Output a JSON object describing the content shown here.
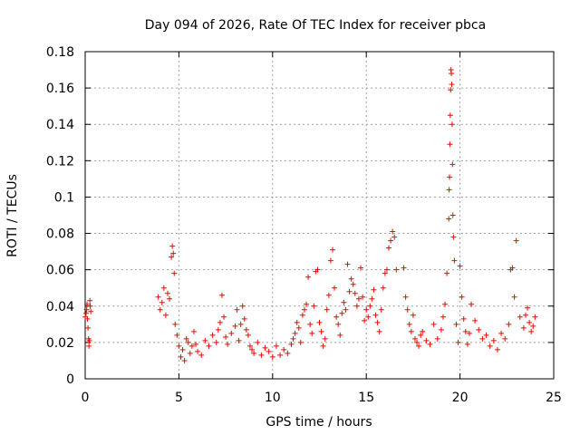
{
  "chart_data": {
    "type": "scatter",
    "title": "Day 094 of 2026, Rate Of TEC Index for receiver pbca",
    "xlabel": "GPS time / hours",
    "ylabel": "ROTI / TECUs",
    "xlim": [
      0,
      25
    ],
    "ylim": [
      0,
      0.18
    ],
    "xticks": [
      "0",
      "5",
      "10",
      "15",
      "20",
      "25"
    ],
    "yticks": [
      "0",
      "0.02",
      "0.04",
      "0.06",
      "0.08",
      "0.1",
      "0.12",
      "0.14",
      "0.16",
      "0.18"
    ],
    "grid": true,
    "marker": "+",
    "color": "#ff0000",
    "series": [
      {
        "name": "ROTI",
        "x": [
          0.0,
          0.05,
          0.08,
          0.1,
          0.12,
          0.15,
          0.18,
          0.2,
          0.22,
          0.25,
          0.27,
          0.3,
          3.9,
          4.0,
          4.1,
          4.2,
          4.3,
          4.4,
          4.5,
          4.6,
          4.65,
          4.7,
          4.75,
          4.8,
          4.9,
          5.0,
          5.1,
          5.2,
          5.3,
          5.4,
          5.5,
          5.6,
          5.7,
          5.8,
          5.9,
          6.0,
          6.2,
          6.4,
          6.6,
          6.8,
          7.0,
          7.1,
          7.2,
          7.3,
          7.4,
          7.5,
          7.6,
          7.8,
          8.0,
          8.1,
          8.2,
          8.3,
          8.4,
          8.5,
          8.6,
          8.7,
          8.8,
          8.9,
          9.0,
          9.2,
          9.4,
          9.6,
          9.8,
          10.0,
          10.2,
          10.4,
          10.6,
          10.8,
          11.0,
          11.1,
          11.2,
          11.3,
          11.4,
          11.5,
          11.6,
          11.7,
          11.8,
          11.9,
          12.0,
          12.1,
          12.2,
          12.3,
          12.4,
          12.5,
          12.6,
          12.7,
          12.8,
          12.9,
          13.0,
          13.1,
          13.2,
          13.3,
          13.4,
          13.5,
          13.6,
          13.7,
          13.8,
          13.9,
          14.0,
          14.1,
          14.2,
          14.3,
          14.4,
          14.5,
          14.6,
          14.7,
          14.8,
          14.9,
          15.0,
          15.1,
          15.2,
          15.3,
          15.4,
          15.5,
          15.6,
          15.7,
          15.8,
          15.9,
          16.0,
          16.1,
          16.2,
          16.3,
          16.4,
          16.5,
          16.6,
          17.0,
          17.1,
          17.2,
          17.3,
          17.4,
          17.5,
          17.6,
          17.7,
          17.8,
          17.9,
          18.0,
          18.2,
          18.4,
          18.6,
          18.8,
          19.0,
          19.1,
          19.2,
          19.3,
          19.4,
          19.42,
          19.44,
          19.46,
          19.48,
          19.5,
          19.52,
          19.54,
          19.56,
          19.58,
          19.6,
          19.62,
          19.65,
          19.7,
          19.8,
          19.9,
          20.0,
          20.1,
          20.2,
          20.3,
          20.4,
          20.5,
          20.6,
          20.8,
          21.0,
          21.2,
          21.4,
          21.6,
          21.8,
          22.0,
          22.2,
          22.4,
          22.6,
          22.7,
          22.8,
          22.9,
          23.0,
          23.2,
          23.4,
          23.5,
          23.6,
          23.7,
          23.8,
          23.9,
          24.0
        ],
        "y": [
          0.034,
          0.036,
          0.038,
          0.041,
          0.033,
          0.028,
          0.022,
          0.018,
          0.021,
          0.043,
          0.04,
          0.037,
          0.045,
          0.038,
          0.042,
          0.05,
          0.035,
          0.047,
          0.044,
          0.067,
          0.073,
          0.069,
          0.058,
          0.03,
          0.024,
          0.018,
          0.012,
          0.016,
          0.01,
          0.022,
          0.02,
          0.014,
          0.018,
          0.026,
          0.019,
          0.015,
          0.013,
          0.021,
          0.018,
          0.024,
          0.02,
          0.027,
          0.031,
          0.046,
          0.034,
          0.023,
          0.019,
          0.025,
          0.029,
          0.038,
          0.021,
          0.03,
          0.04,
          0.033,
          0.027,
          0.024,
          0.018,
          0.016,
          0.014,
          0.02,
          0.013,
          0.017,
          0.015,
          0.012,
          0.018,
          0.013,
          0.016,
          0.014,
          0.019,
          0.022,
          0.025,
          0.031,
          0.028,
          0.02,
          0.035,
          0.038,
          0.041,
          0.056,
          0.03,
          0.025,
          0.04,
          0.059,
          0.06,
          0.031,
          0.026,
          0.018,
          0.022,
          0.038,
          0.046,
          0.065,
          0.071,
          0.05,
          0.034,
          0.03,
          0.024,
          0.036,
          0.042,
          0.038,
          0.063,
          0.048,
          0.055,
          0.052,
          0.047,
          0.04,
          0.044,
          0.061,
          0.045,
          0.032,
          0.038,
          0.034,
          0.04,
          0.044,
          0.049,
          0.035,
          0.031,
          0.026,
          0.038,
          0.05,
          0.058,
          0.06,
          0.072,
          0.076,
          0.081,
          0.078,
          0.06,
          0.061,
          0.045,
          0.038,
          0.03,
          0.026,
          0.035,
          0.022,
          0.02,
          0.018,
          0.024,
          0.026,
          0.021,
          0.019,
          0.03,
          0.022,
          0.027,
          0.034,
          0.041,
          0.058,
          0.088,
          0.104,
          0.111,
          0.129,
          0.145,
          0.159,
          0.17,
          0.168,
          0.162,
          0.14,
          0.118,
          0.09,
          0.078,
          0.065,
          0.03,
          0.02,
          0.062,
          0.045,
          0.033,
          0.026,
          0.019,
          0.025,
          0.041,
          0.032,
          0.027,
          0.022,
          0.024,
          0.018,
          0.021,
          0.016,
          0.025,
          0.022,
          0.03,
          0.06,
          0.061,
          0.045,
          0.076,
          0.034,
          0.028,
          0.035,
          0.039,
          0.031,
          0.026,
          0.029,
          0.034
        ]
      }
    ]
  }
}
